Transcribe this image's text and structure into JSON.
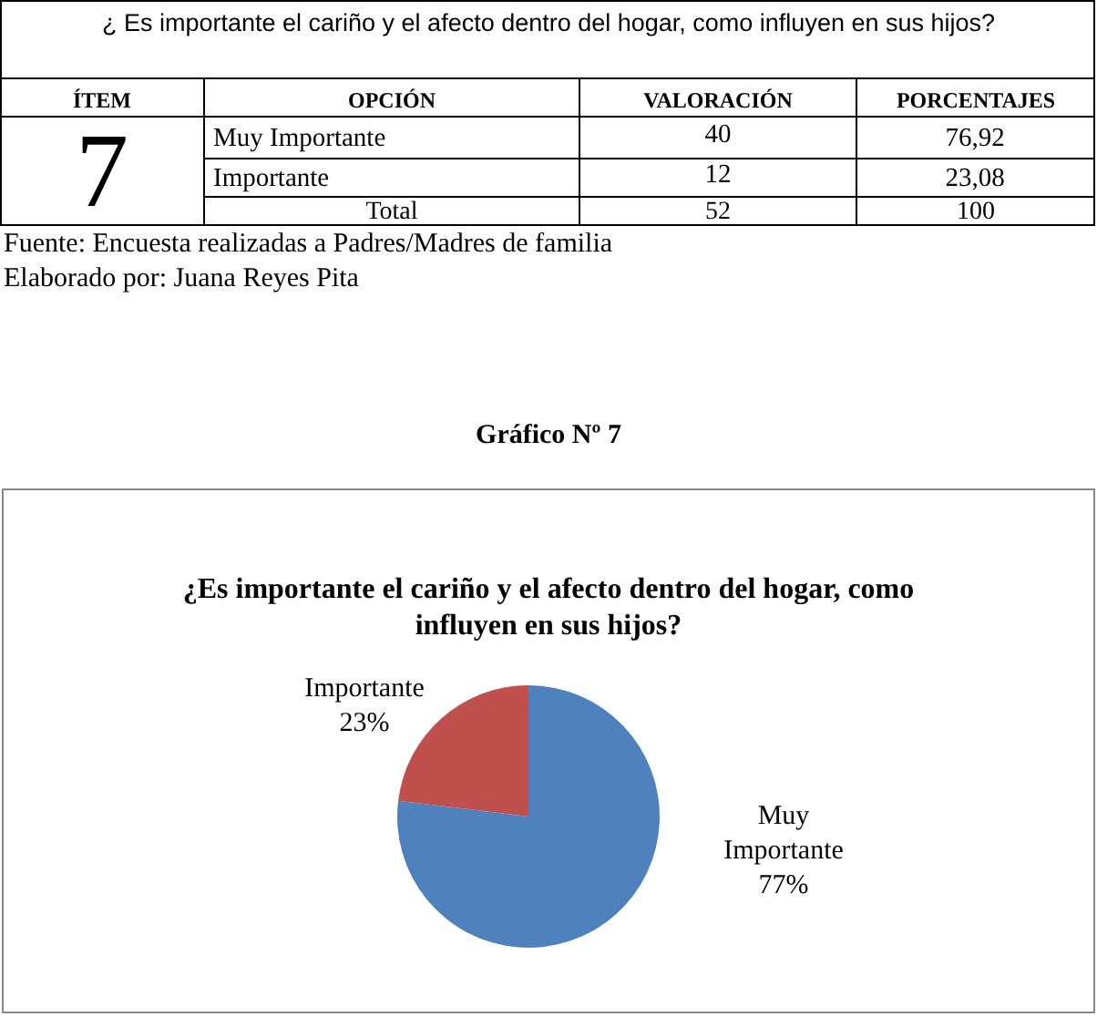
{
  "chart_data": {
    "type": "pie",
    "title": "¿Es importante el cariño y el afecto dentro del hogar, como influyen en sus hijos?",
    "categories": [
      "Muy Importante",
      "Importante"
    ],
    "values": [
      76.92,
      23.08
    ],
    "value_labels": [
      "77%",
      "23%"
    ],
    "colors": [
      "#4f81bd",
      "#c0504d"
    ],
    "annotations": [
      "¿ Es importante el cariño y el afecto dentro del hogar, como influyen en sus hijos?",
      "ÍTEM",
      "OPCIÓN",
      "VALORACIÓN",
      "PORCENTAJES",
      "7",
      "Muy Importante",
      "40",
      "76,92",
      "Importante",
      "12",
      "23,08",
      "Total",
      "52",
      "100",
      "Fuente: Encuesta realizadas a Padres/Madres de familia",
      "Elaborado por: Juana Reyes Pita",
      "Gráfico Nº 7"
    ]
  }
}
